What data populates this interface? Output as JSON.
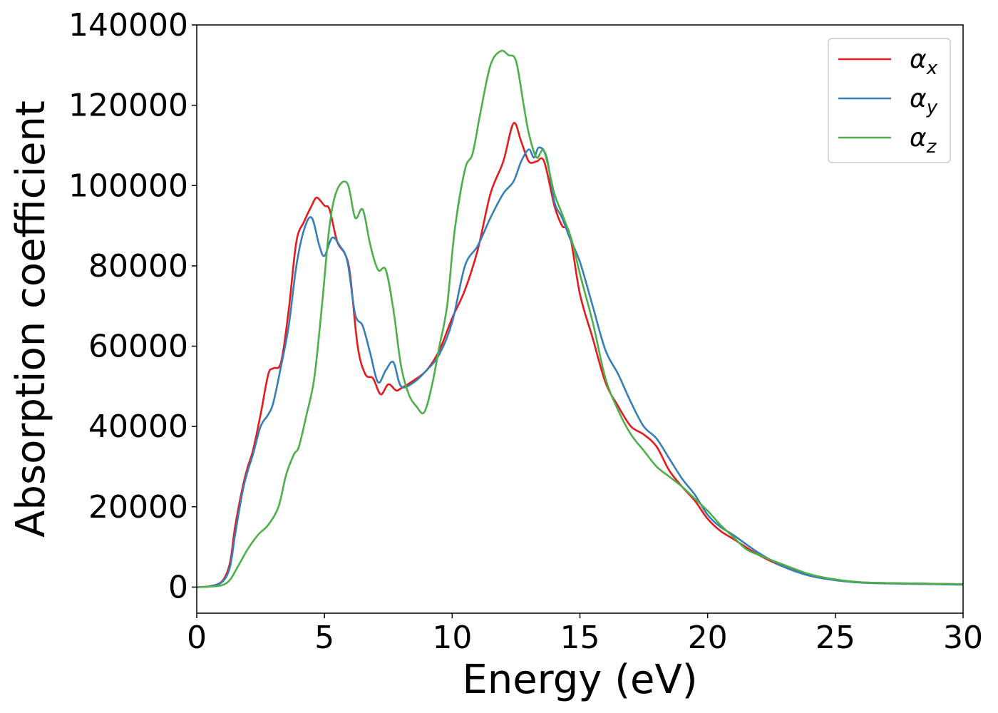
{
  "chart_data": {
    "type": "line",
    "xlabel": "Energy (eV)",
    "ylabel": "Absorption coefficient",
    "xlim": [
      0,
      30
    ],
    "ylim": [
      -6500,
      140000
    ],
    "xticks": [
      0,
      5,
      10,
      15,
      20,
      25,
      30
    ],
    "yticks": [
      0,
      20000,
      40000,
      60000,
      80000,
      100000,
      120000,
      140000
    ],
    "legend_position": "top-right",
    "grid": false,
    "series": [
      {
        "name": "α",
        "subscript": "x",
        "color": "#e41a1c",
        "x": [
          0,
          0.5,
          1.0,
          1.3,
          1.5,
          1.8,
          2.0,
          2.2,
          2.5,
          2.8,
          3.0,
          3.3,
          3.6,
          3.9,
          4.2,
          4.5,
          4.7,
          5.0,
          5.2,
          5.5,
          5.8,
          6.0,
          6.3,
          6.6,
          6.9,
          7.2,
          7.5,
          7.8,
          8.0,
          8.5,
          9.0,
          9.5,
          10.0,
          10.5,
          11.0,
          11.5,
          12.0,
          12.4,
          12.7,
          13.0,
          13.3,
          13.6,
          14.0,
          14.3,
          14.6,
          15.0,
          15.5,
          16.0,
          16.5,
          17.0,
          17.5,
          18.0,
          18.5,
          19.0,
          19.5,
          20.0,
          20.5,
          21.0,
          22.0,
          23.0,
          24.0,
          25.0,
          26.0,
          27.0,
          28.0,
          29.0,
          30.0
        ],
        "values": [
          0,
          200,
          1500,
          6000,
          15000,
          25000,
          30000,
          34000,
          43000,
          53000,
          54500,
          56000,
          69000,
          86000,
          91000,
          95000,
          97000,
          95000,
          94000,
          86000,
          83000,
          78000,
          60000,
          53000,
          52000,
          48000,
          50500,
          49000,
          49500,
          51500,
          54000,
          59000,
          67000,
          74000,
          84000,
          98000,
          106000,
          115500,
          111000,
          106000,
          106000,
          106000,
          95000,
          90000,
          88000,
          73000,
          62000,
          51000,
          45000,
          40000,
          38000,
          35000,
          29000,
          25000,
          21500,
          17000,
          14000,
          12000,
          8000,
          5000,
          3000,
          1800,
          1200,
          1000,
          900,
          800,
          700
        ]
      },
      {
        "name": "α",
        "subscript": "y",
        "color": "#377eb8",
        "x": [
          0,
          0.5,
          1.0,
          1.3,
          1.5,
          1.8,
          2.0,
          2.2,
          2.5,
          2.8,
          3.0,
          3.3,
          3.6,
          3.9,
          4.2,
          4.5,
          4.8,
          5.0,
          5.3,
          5.6,
          5.9,
          6.2,
          6.5,
          6.8,
          7.1,
          7.4,
          7.7,
          8.0,
          8.5,
          9.0,
          9.5,
          10.0,
          10.5,
          11.0,
          11.5,
          12.0,
          12.4,
          12.7,
          13.0,
          13.2,
          13.4,
          13.7,
          14.0,
          14.3,
          14.6,
          15.0,
          15.5,
          16.0,
          16.5,
          17.0,
          17.5,
          18.0,
          18.5,
          19.0,
          19.5,
          20.0,
          20.5,
          21.0,
          22.0,
          23.0,
          24.0,
          25.0,
          26.0,
          27.0,
          28.0,
          29.0,
          30.0
        ],
        "values": [
          0,
          200,
          1300,
          5000,
          13000,
          24000,
          29000,
          33000,
          40000,
          43000,
          46000,
          55000,
          65000,
          80000,
          89000,
          92000,
          85000,
          82500,
          87000,
          85000,
          81000,
          68000,
          65000,
          58000,
          51000,
          54000,
          56000,
          50000,
          51000,
          54000,
          58000,
          66000,
          80000,
          85000,
          92000,
          98000,
          101000,
          106000,
          109000,
          107000,
          109500,
          107000,
          96000,
          92000,
          87000,
          81000,
          70000,
          59000,
          53000,
          46000,
          40000,
          37000,
          32000,
          27000,
          23000,
          18000,
          15000,
          13000,
          8500,
          5000,
          2800,
          1700,
          1100,
          900,
          800,
          700,
          600
        ]
      },
      {
        "name": "α",
        "subscript": "z",
        "color": "#4daf4a",
        "x": [
          0,
          0.5,
          1.0,
          1.3,
          1.6,
          2.0,
          2.4,
          2.8,
          3.2,
          3.5,
          3.8,
          4.0,
          4.3,
          4.6,
          4.9,
          5.2,
          5.5,
          5.9,
          6.2,
          6.5,
          6.8,
          7.1,
          7.4,
          7.7,
          8.0,
          8.3,
          8.6,
          8.9,
          9.2,
          9.5,
          9.8,
          10.1,
          10.5,
          10.8,
          11.1,
          11.5,
          11.9,
          12.2,
          12.5,
          12.8,
          13.0,
          13.3,
          13.6,
          14.0,
          14.3,
          14.7,
          15.0,
          15.5,
          16.0,
          16.5,
          17.0,
          17.5,
          18.0,
          18.5,
          19.0,
          19.5,
          20.0,
          20.5,
          21.0,
          21.5,
          22.0,
          23.0,
          24.0,
          25.0,
          26.0,
          27.0,
          28.0,
          29.0,
          30.0
        ],
        "values": [
          0,
          100,
          500,
          1800,
          5000,
          9500,
          13000,
          15500,
          20000,
          28000,
          33000,
          35000,
          43000,
          52000,
          70000,
          90000,
          99000,
          100500,
          92000,
          94000,
          85000,
          79000,
          79000,
          69000,
          55000,
          48000,
          45000,
          43500,
          50000,
          60000,
          70000,
          89000,
          104000,
          108000,
          118000,
          130000,
          133500,
          132500,
          131000,
          120000,
          113000,
          107000,
          108500,
          98000,
          93000,
          86000,
          78000,
          66000,
          52000,
          44000,
          38000,
          34000,
          30000,
          27500,
          25000,
          22000,
          19000,
          15500,
          12500,
          9500,
          8000,
          5500,
          3200,
          1900,
          1200,
          1000,
          900,
          800,
          700
        ]
      }
    ]
  }
}
